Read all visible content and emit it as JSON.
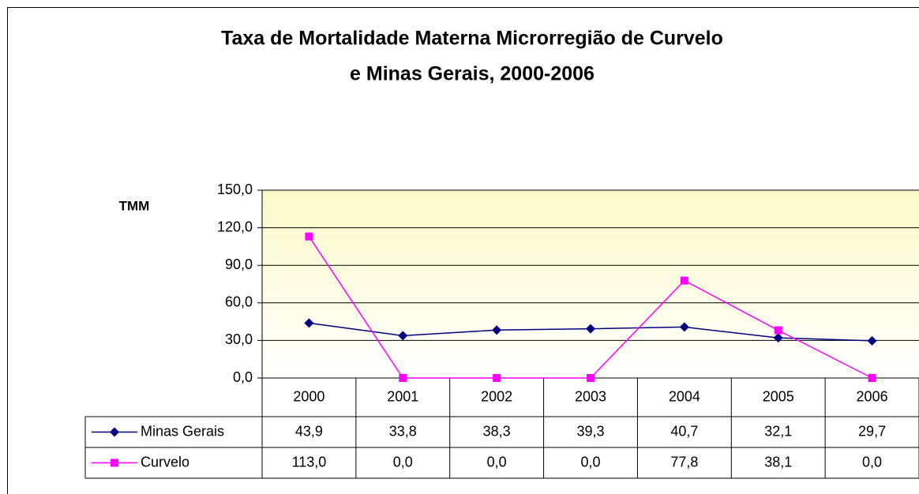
{
  "chart_data": {
    "type": "line",
    "title": [
      "Taxa de Mortalidade Materna  Microrregião de Curvelo",
      "e  Minas Gerais, 2000-2006"
    ],
    "y_label": "TMM",
    "categories": [
      "2000",
      "2001",
      "2002",
      "2003",
      "2004",
      "2005",
      "2006"
    ],
    "series": [
      {
        "name": "Minas Gerais",
        "color": "#000080",
        "marker": "diamond",
        "values": [
          43.9,
          33.8,
          38.3,
          39.3,
          40.7,
          32.1,
          29.7
        ],
        "value_labels": [
          "43,9",
          "33,8",
          "38,3",
          "39,3",
          "40,7",
          "32,1",
          "29,7"
        ]
      },
      {
        "name": "Curvelo",
        "color": "#ff00ff",
        "marker": "square",
        "values": [
          113.0,
          0.0,
          0.0,
          0.0,
          77.8,
          38.1,
          0.0
        ],
        "value_labels": [
          "113,0",
          "0,0",
          "0,0",
          "0,0",
          "77,8",
          "38,1",
          "0,0"
        ]
      }
    ],
    "ylim": [
      0,
      150
    ],
    "yticks": [
      {
        "value": 0,
        "label": "0,0"
      },
      {
        "value": 30,
        "label": "30,0"
      },
      {
        "value": 60,
        "label": "60,0"
      },
      {
        "value": 90,
        "label": "90,0"
      },
      {
        "value": 120,
        "label": "120,0"
      },
      {
        "value": 150,
        "label": "150,0"
      }
    ],
    "grid": true
  }
}
